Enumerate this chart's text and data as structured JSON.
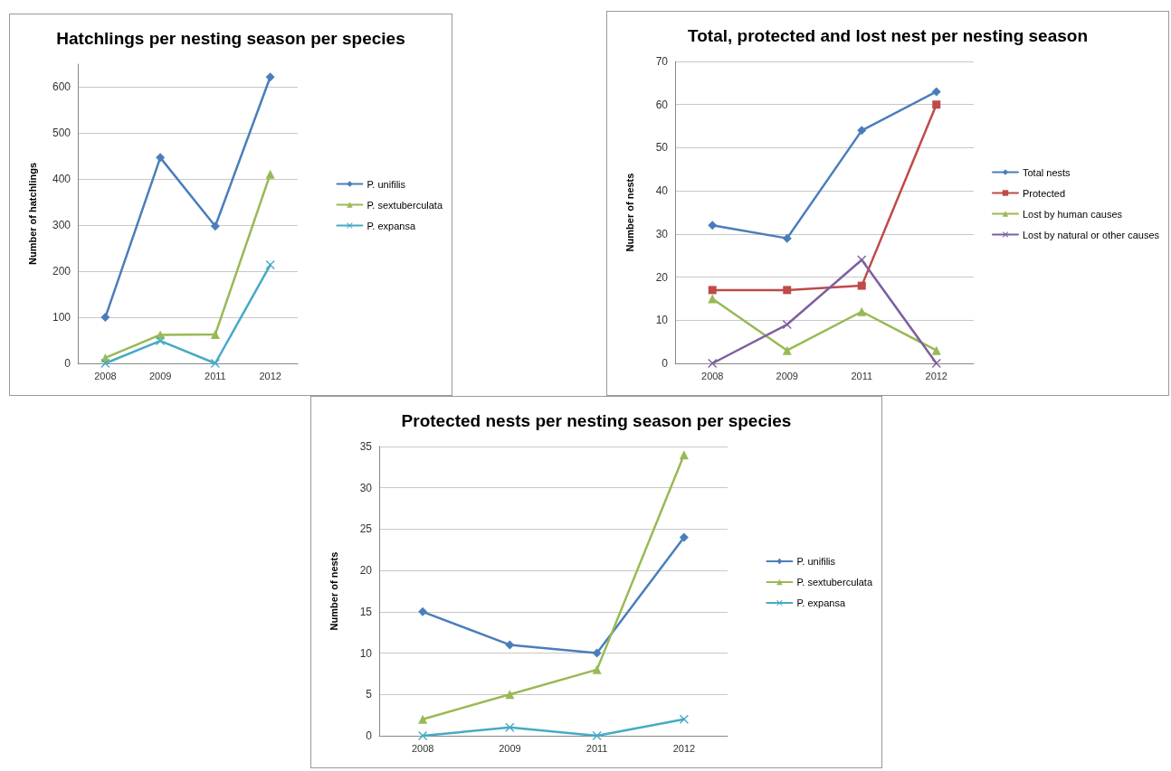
{
  "chart_data": [
    {
      "type": "line",
      "title": "Hatchlings per nesting season per species",
      "ylabel": "Number of hatchlings",
      "categories": [
        "2008",
        "2009",
        "2011",
        "2012"
      ],
      "ylim": [
        0,
        650
      ],
      "yticks": [
        0,
        100,
        200,
        300,
        400,
        500,
        600
      ],
      "grid": "y",
      "legend": "right",
      "series": [
        {
          "name": "P. unifilis",
          "color": "#4a7ebb",
          "marker": "diamond",
          "values": [
            100,
            447,
            298,
            622
          ]
        },
        {
          "name": "P. sextuberculata",
          "color": "#98b954",
          "marker": "triangle",
          "values": [
            12,
            62,
            63,
            411
          ]
        },
        {
          "name": "P. expansa",
          "color": "#46aac5",
          "marker": "cross",
          "values": [
            0,
            49,
            0,
            214
          ]
        }
      ]
    },
    {
      "type": "line",
      "title": "Total, protected and lost nest per nesting season",
      "ylabel": "Number of nests",
      "categories": [
        "2008",
        "2009",
        "2011",
        "2012"
      ],
      "ylim": [
        0,
        70
      ],
      "yticks": [
        0,
        10,
        20,
        30,
        40,
        50,
        60,
        70
      ],
      "grid": "y",
      "legend": "right",
      "series": [
        {
          "name": "Total nests",
          "color": "#4a7ebb",
          "marker": "diamond",
          "values": [
            32,
            29,
            54,
            63
          ]
        },
        {
          "name": "Protected",
          "color": "#be4b48",
          "marker": "square",
          "values": [
            17,
            17,
            18,
            60
          ]
        },
        {
          "name": "Lost by human causes",
          "color": "#98b954",
          "marker": "triangle",
          "values": [
            15,
            3,
            12,
            3
          ]
        },
        {
          "name": "Lost by natural or other causes",
          "color": "#7d60a0",
          "marker": "cross",
          "values": [
            0,
            9,
            24,
            0
          ]
        }
      ]
    },
    {
      "type": "line",
      "title": "Protected nests per nesting season per species",
      "ylabel": "Number of nests",
      "categories": [
        "2008",
        "2009",
        "2011",
        "2012"
      ],
      "ylim": [
        0,
        35
      ],
      "yticks": [
        0,
        5,
        10,
        15,
        20,
        25,
        30,
        35
      ],
      "grid": "y",
      "legend": "right",
      "series": [
        {
          "name": "P. unifilis",
          "color": "#4a7ebb",
          "marker": "diamond",
          "values": [
            15,
            11,
            10,
            24
          ]
        },
        {
          "name": "P. sextuberculata",
          "color": "#98b954",
          "marker": "triangle",
          "values": [
            2,
            5,
            8,
            34
          ]
        },
        {
          "name": "P. expansa",
          "color": "#46aac5",
          "marker": "cross",
          "values": [
            0,
            1,
            0,
            2
          ]
        }
      ]
    }
  ]
}
